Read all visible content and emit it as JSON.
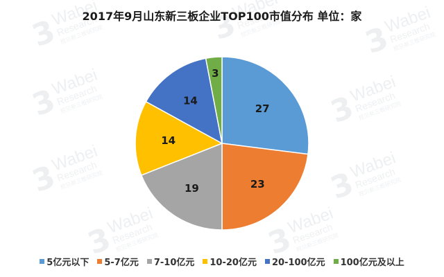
{
  "watermark": {
    "brand": "Wabei",
    "sub": "Research",
    "cn": "挖贝新三板研究院"
  },
  "chart_data": {
    "type": "pie",
    "title": "2017年9月山东新三板企业TOP100市值分布  单位：家",
    "categories": [
      "5亿元以下",
      "5-7亿元",
      "7-10亿元",
      "10-20亿元",
      "20-100亿元",
      "100亿元及以上"
    ],
    "values": [
      27,
      23,
      19,
      14,
      14,
      3
    ],
    "colors": [
      "#5B9BD5",
      "#ED7D31",
      "#A5A5A5",
      "#FFC000",
      "#4472C4",
      "#70AD47"
    ],
    "start_angle_deg": 0,
    "direction": "clockwise",
    "data_labels": true,
    "legend_position": "bottom"
  }
}
